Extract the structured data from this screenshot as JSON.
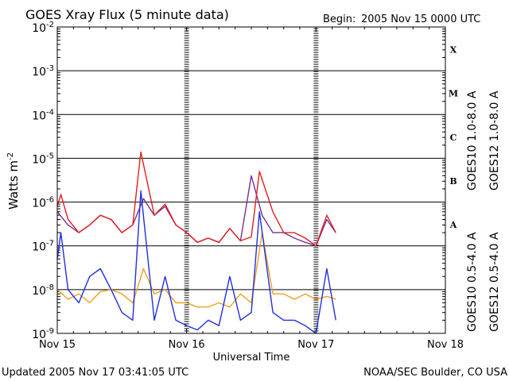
{
  "chart_data": {
    "type": "line",
    "title": "GOES Xray Flux (5 minute data)",
    "begin_label": "Begin:",
    "begin_value": "2005 Nov 15 0000 UTC",
    "xlabel": "Universal Time",
    "ylabel": "Watts m",
    "ylabel_exponent": "-2",
    "yscale": "log",
    "xlim": [
      "2005-11-15 00:00",
      "2005-11-18 00:00"
    ],
    "ylim": [
      1e-09,
      0.01
    ],
    "grid": true,
    "x_ticks": [
      "Nov 15",
      "Nov 16",
      "Nov 17",
      "Nov 18"
    ],
    "y_ticks": [
      {
        "exp": -2
      },
      {
        "exp": -3
      },
      {
        "exp": -4
      },
      {
        "exp": -5
      },
      {
        "exp": -6
      },
      {
        "exp": -7
      },
      {
        "exp": -8
      },
      {
        "exp": -9
      }
    ],
    "flare_classes": [
      "X",
      "M",
      "C",
      "B",
      "A"
    ],
    "legend": [
      {
        "label": "GOES10 1.0-8.0 A",
        "color": "#7a2f8f"
      },
      {
        "label": "GOES12 1.0-8.0 A",
        "color": "#e02020"
      },
      {
        "label": "GOES10 0.5-4.0 A",
        "color": "#f0a020"
      },
      {
        "label": "GOES12 0.5-4.0 A",
        "color": "#2030e0"
      }
    ],
    "series": [
      {
        "name": "GOES10 1.0-8.0 A",
        "color": "#7a2f8f",
        "x": [
          "2005-11-15 00:00",
          "2005-11-15 02:00",
          "2005-11-15 04:00",
          "2005-11-15 06:00",
          "2005-11-15 08:00",
          "2005-11-15 10:00",
          "2005-11-15 12:00",
          "2005-11-15 14:00",
          "2005-11-15 16:00",
          "2005-11-15 18:00",
          "2005-11-15 20:00",
          "2005-11-15 22:00",
          "2005-11-16 00:00",
          "2005-11-16 02:00",
          "2005-11-16 04:00",
          "2005-11-16 06:00",
          "2005-11-16 08:00",
          "2005-11-16 10:00",
          "2005-11-16 12:00",
          "2005-11-16 14:00",
          "2005-11-16 16:00",
          "2005-11-16 18:00",
          "2005-11-16 20:00",
          "2005-11-16 22:00",
          "2005-11-17 00:00",
          "2005-11-17 02:00",
          "2005-11-17 03:40"
        ],
        "values": [
          6e-07,
          3e-07,
          2e-07,
          3e-07,
          5e-07,
          4e-07,
          2e-07,
          3e-07,
          1.2e-06,
          5e-07,
          8e-07,
          3e-07,
          2e-07,
          1.2e-07,
          1.5e-07,
          1.2e-07,
          2.5e-07,
          1.3e-07,
          4e-06,
          5e-07,
          2e-07,
          2e-07,
          1.5e-07,
          1.2e-07,
          1e-07,
          4e-07,
          2e-07
        ]
      },
      {
        "name": "GOES12 1.0-8.0 A",
        "color": "#e02020",
        "x": [
          "2005-11-15 00:00",
          "2005-11-15 00:40",
          "2005-11-15 02:00",
          "2005-11-15 04:00",
          "2005-11-15 06:00",
          "2005-11-15 08:00",
          "2005-11-15 10:00",
          "2005-11-15 12:00",
          "2005-11-15 14:00",
          "2005-11-15 15:30",
          "2005-11-15 18:00",
          "2005-11-15 20:00",
          "2005-11-15 22:00",
          "2005-11-16 00:00",
          "2005-11-16 02:00",
          "2005-11-16 04:00",
          "2005-11-16 06:00",
          "2005-11-16 08:00",
          "2005-11-16 10:00",
          "2005-11-16 12:00",
          "2005-11-16 13:30",
          "2005-11-16 16:00",
          "2005-11-16 18:00",
          "2005-11-16 20:00",
          "2005-11-16 22:00",
          "2005-11-17 00:00",
          "2005-11-17 02:00",
          "2005-11-17 03:40"
        ],
        "values": [
          8e-07,
          1.5e-06,
          4e-07,
          2e-07,
          3e-07,
          5e-07,
          4e-07,
          2e-07,
          3e-07,
          1.4e-05,
          5e-07,
          9e-07,
          3e-07,
          2e-07,
          1.2e-07,
          1.5e-07,
          1.2e-07,
          2.5e-07,
          1.3e-07,
          1.6e-07,
          5e-06,
          6e-07,
          2e-07,
          2e-07,
          1.5e-07,
          1e-07,
          5e-07,
          2e-07
        ]
      },
      {
        "name": "GOES10 0.5-4.0 A",
        "color": "#f0a020",
        "x": [
          "2005-11-15 00:00",
          "2005-11-15 02:00",
          "2005-11-15 04:00",
          "2005-11-15 06:00",
          "2005-11-15 08:00",
          "2005-11-15 10:00",
          "2005-11-15 12:00",
          "2005-11-15 14:00",
          "2005-11-15 16:00",
          "2005-11-15 18:00",
          "2005-11-15 20:00",
          "2005-11-15 22:00",
          "2005-11-16 00:00",
          "2005-11-16 02:00",
          "2005-11-16 04:00",
          "2005-11-16 06:00",
          "2005-11-16 08:00",
          "2005-11-16 10:00",
          "2005-11-16 12:00",
          "2005-11-16 14:00",
          "2005-11-16 16:00",
          "2005-11-16 18:00",
          "2005-11-16 20:00",
          "2005-11-16 22:00",
          "2005-11-17 00:00",
          "2005-11-17 02:00",
          "2005-11-17 03:40"
        ],
        "values": [
          1e-08,
          6e-09,
          8e-09,
          5e-09,
          9e-09,
          1e-08,
          8e-09,
          5e-09,
          3e-08,
          8e-09,
          1e-08,
          5e-09,
          5e-09,
          4e-09,
          4e-09,
          5e-09,
          4e-09,
          8e-09,
          5e-09,
          2e-07,
          8e-09,
          8e-09,
          6e-09,
          8e-09,
          6e-09,
          7e-09,
          6e-09
        ]
      },
      {
        "name": "GOES12 0.5-4.0 A",
        "color": "#2030e0",
        "x": [
          "2005-11-15 00:00",
          "2005-11-15 00:40",
          "2005-11-15 02:00",
          "2005-11-15 04:00",
          "2005-11-15 06:00",
          "2005-11-15 08:00",
          "2005-11-15 10:00",
          "2005-11-15 12:00",
          "2005-11-15 14:00",
          "2005-11-15 15:30",
          "2005-11-15 18:00",
          "2005-11-15 20:00",
          "2005-11-15 22:00",
          "2005-11-16 00:00",
          "2005-11-16 02:00",
          "2005-11-16 04:00",
          "2005-11-16 06:00",
          "2005-11-16 08:00",
          "2005-11-16 10:00",
          "2005-11-16 12:00",
          "2005-11-16 13:30",
          "2005-11-16 16:00",
          "2005-11-16 18:00",
          "2005-11-16 20:00",
          "2005-11-16 22:00",
          "2005-11-17 00:00",
          "2005-11-17 02:00",
          "2005-11-17 03:40"
        ],
        "values": [
          5e-08,
          2e-07,
          1e-08,
          5e-09,
          2e-08,
          3e-08,
          1e-08,
          3e-09,
          2e-09,
          1.8e-06,
          2e-09,
          2e-08,
          2e-09,
          1.5e-09,
          1.2e-09,
          2e-09,
          1.5e-09,
          2e-08,
          2e-09,
          3e-09,
          6e-07,
          3e-09,
          2e-09,
          2e-09,
          1.5e-09,
          1e-09,
          3e-08,
          2e-09
        ]
      }
    ]
  },
  "footer": {
    "updated": "Updated 2005 Nov 17 03:41:05 UTC",
    "credit": "NOAA/SEC Boulder, CO USA"
  }
}
